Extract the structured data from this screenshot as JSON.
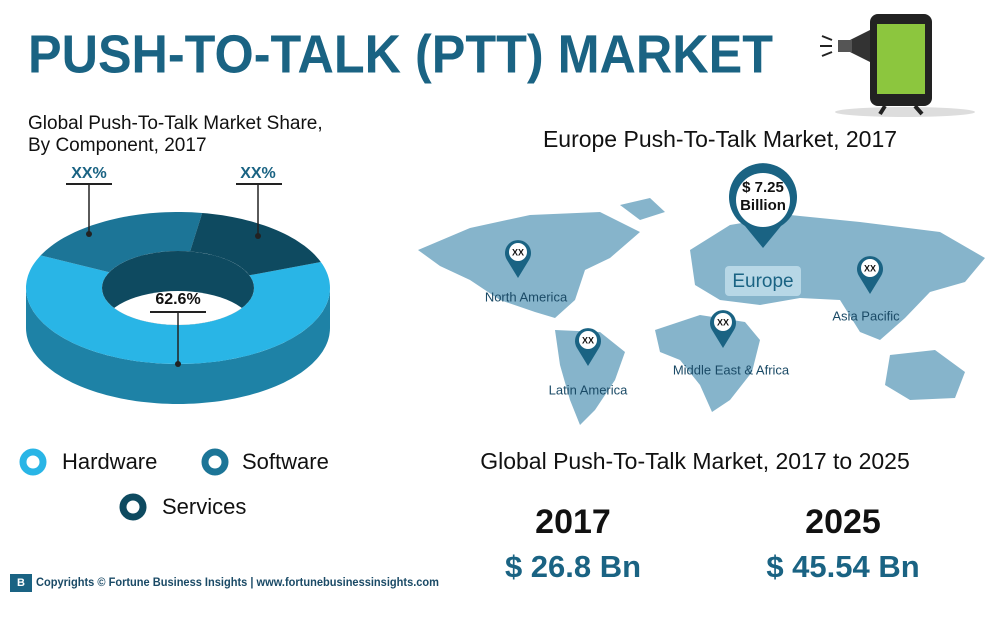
{
  "header": {
    "title": "PUSH-TO-TALK (PTT) MARKET"
  },
  "chart_data": {
    "type": "donut",
    "title_line1": "Global Push-To-Talk Market Share,",
    "title_line2": "By Component, 2017",
    "categories": [
      "Hardware",
      "Software",
      "Services"
    ],
    "values": [
      62.6,
      20.5,
      16.9
    ],
    "colors": [
      "#29b5e6",
      "#1c7597",
      "#0e4a60"
    ],
    "annotations": [
      "62.6%",
      "XX%",
      "XX%"
    ]
  },
  "map": {
    "title": "Europe Push-To-Talk Market, 2017",
    "callout_value": "$ 7.25",
    "callout_unit": "Billion",
    "highlight": "Europe",
    "regions": [
      {
        "label": "North America",
        "marker": "XX"
      },
      {
        "label": "Latin America",
        "marker": "XX"
      },
      {
        "label": "Middle East & Africa",
        "marker": "XX"
      },
      {
        "label": "Asia Pacific",
        "marker": "XX"
      }
    ]
  },
  "growth": {
    "title": "Global Push-To-Talk Market, 2017 to 2025",
    "items": [
      {
        "year": "2017",
        "value": "$ 26.8 Bn"
      },
      {
        "year": "2025",
        "value": "$ 45.54 Bn"
      }
    ]
  },
  "footer": {
    "text": "Copyrights © Fortune Business Insights | www.fortunebusinessinsights.com"
  }
}
